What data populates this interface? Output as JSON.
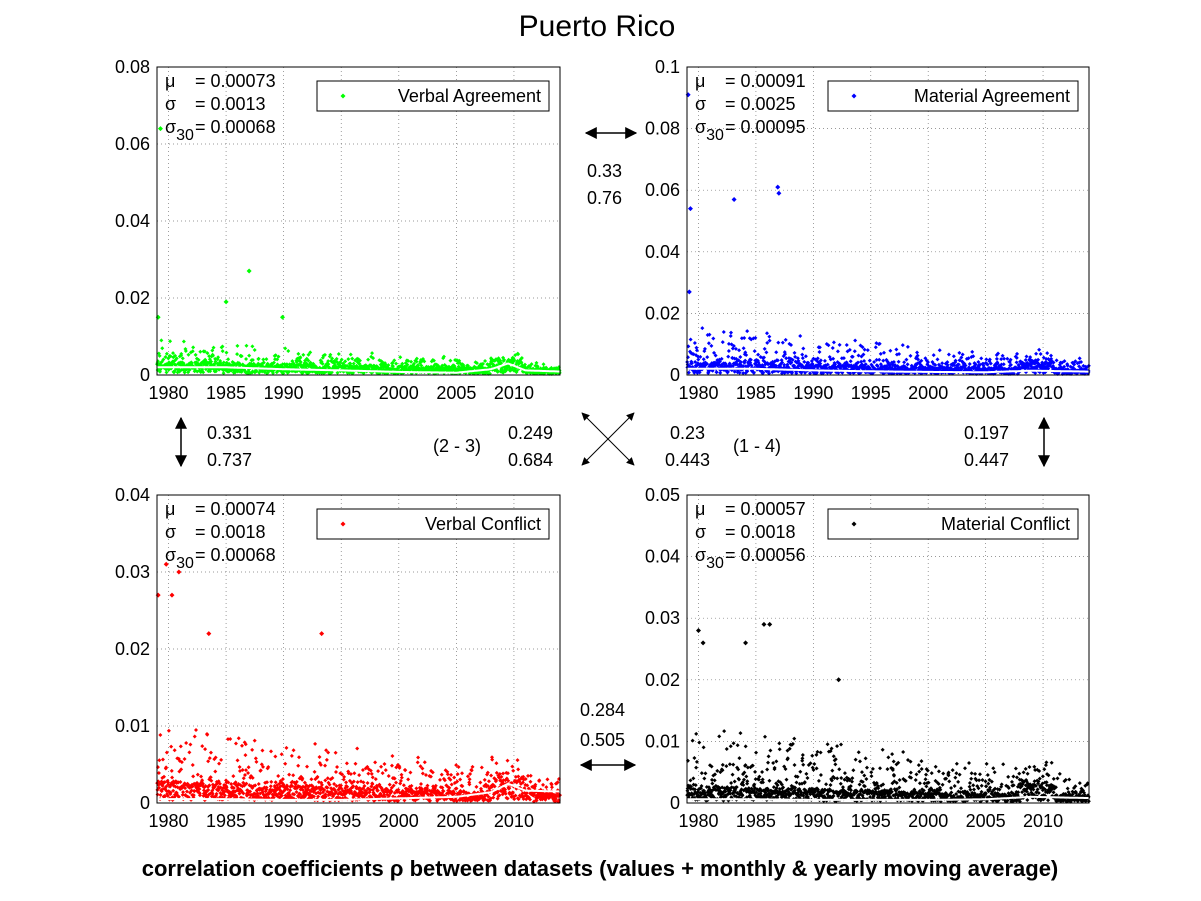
{
  "figure": {
    "title": "Puerto Rico",
    "footer_label": "correlation coefficients ρ between datasets (values + monthly & yearly moving average)"
  },
  "chart_data": [
    {
      "type": "scatter",
      "id": "verbal-agreement",
      "legend": "Verbal Agreement",
      "color": "#00ff00",
      "xlim": [
        1979,
        2014
      ],
      "ylim": [
        0,
        0.08
      ],
      "x_ticks": [
        "1980",
        "1985",
        "1990",
        "1995",
        "2000",
        "2005",
        "2010"
      ],
      "y_ticks": [
        "0",
        "0.02",
        "0.04",
        "0.06",
        "0.08"
      ],
      "stats": {
        "mu": "= 0.00073",
        "sigma": "= 0.0013",
        "sigma30": "= 0.00068"
      },
      "baseline": 0.0025,
      "spread": 0.0045,
      "decay": 0.55,
      "outliers": [
        [
          1979.1,
          0.015
        ],
        [
          1985.0,
          0.019
        ],
        [
          1987.0,
          0.027
        ],
        [
          1989.9,
          0.015
        ],
        [
          1979.3,
          0.064
        ]
      ],
      "moving_avg": [
        [
          1979,
          0.002
        ],
        [
          1985,
          0.002
        ],
        [
          1990,
          0.0015
        ],
        [
          1995,
          0.0012
        ],
        [
          2000,
          0.0008
        ],
        [
          2005,
          0.0006
        ],
        [
          2008,
          0.0015
        ],
        [
          2009.5,
          0.003
        ],
        [
          2011,
          0.0012
        ],
        [
          2014,
          0.0009
        ]
      ]
    },
    {
      "type": "scatter",
      "id": "material-agreement",
      "legend": "Material Agreement",
      "color": "#0000ff",
      "xlim": [
        1979,
        2014
      ],
      "ylim": [
        0,
        0.1
      ],
      "x_ticks": [
        "1980",
        "1985",
        "1990",
        "1995",
        "2000",
        "2005",
        "2010"
      ],
      "y_ticks": [
        "0",
        "0.02",
        "0.04",
        "0.06",
        "0.08",
        "0.1"
      ],
      "stats": {
        "mu": "= 0.00091",
        "sigma": "= 0.0025",
        "sigma30": "= 0.00095"
      },
      "baseline": 0.003,
      "spread": 0.009,
      "decay": 0.6,
      "outliers": [
        [
          1979.1,
          0.091
        ],
        [
          1979.3,
          0.054
        ],
        [
          1983.1,
          0.057
        ],
        [
          1986.9,
          0.061
        ],
        [
          1987.0,
          0.059
        ],
        [
          1979.2,
          0.027
        ]
      ],
      "moving_avg": [
        [
          1979,
          0.002
        ],
        [
          1985,
          0.002
        ],
        [
          1990,
          0.0015
        ],
        [
          1995,
          0.0012
        ],
        [
          2000,
          0.001
        ],
        [
          2005,
          0.0009
        ],
        [
          2009,
          0.0014
        ],
        [
          2014,
          0.0011
        ]
      ]
    },
    {
      "type": "scatter",
      "id": "verbal-conflict",
      "legend": "Verbal Conflict",
      "color": "#ff0000",
      "xlim": [
        1979,
        2014
      ],
      "ylim": [
        0,
        0.04
      ],
      "x_ticks": [
        "1980",
        "1985",
        "1990",
        "1995",
        "2000",
        "2005",
        "2010"
      ],
      "y_ticks": [
        "0",
        "0.01",
        "0.02",
        "0.03",
        "0.04"
      ],
      "stats": {
        "mu": "= 0.00074",
        "sigma": "= 0.0018",
        "sigma30": "= 0.00068"
      },
      "baseline": 0.002,
      "spread": 0.006,
      "decay": 0.6,
      "outliers": [
        [
          1979.1,
          0.027
        ],
        [
          1979.8,
          0.031
        ],
        [
          1980.9,
          0.03
        ],
        [
          1980.3,
          0.027
        ],
        [
          1993.3,
          0.022
        ],
        [
          1983.5,
          0.022
        ]
      ],
      "moving_avg": [
        [
          1979,
          0.0005
        ],
        [
          1985,
          0.0005
        ],
        [
          1990,
          0.0004
        ],
        [
          1995,
          0.0004
        ],
        [
          2000,
          0.0006
        ],
        [
          2005,
          0.0008
        ],
        [
          2008,
          0.0014
        ],
        [
          2009.5,
          0.0025
        ],
        [
          2011,
          0.0016
        ],
        [
          2014,
          0.0015
        ]
      ]
    },
    {
      "type": "scatter",
      "id": "material-conflict",
      "legend": "Material Conflict",
      "color": "#000000",
      "xlim": [
        1979,
        2014
      ],
      "ylim": [
        0,
        0.05
      ],
      "x_ticks": [
        "1980",
        "1985",
        "1990",
        "1995",
        "2000",
        "2005",
        "2010"
      ],
      "y_ticks": [
        "0",
        "0.01",
        "0.02",
        "0.03",
        "0.04",
        "0.05"
      ],
      "stats": {
        "mu": "= 0.00057",
        "sigma": "= 0.0018",
        "sigma30": "= 0.00056"
      },
      "baseline": 0.002,
      "spread": 0.008,
      "decay": 0.6,
      "outliers": [
        [
          1980.0,
          0.028
        ],
        [
          1980.4,
          0.026
        ],
        [
          1985.7,
          0.029
        ],
        [
          1986.2,
          0.029
        ],
        [
          1984.1,
          0.026
        ],
        [
          1992.2,
          0.02
        ]
      ],
      "moving_avg": [
        [
          1979,
          0.0006
        ],
        [
          1985,
          0.0006
        ],
        [
          1990,
          0.0005
        ],
        [
          1995,
          0.0005
        ],
        [
          2000,
          0.0005
        ],
        [
          2005,
          0.0006
        ],
        [
          2009,
          0.001
        ],
        [
          2014,
          0.0008
        ]
      ]
    }
  ],
  "correlations": {
    "va_ma": {
      "values": "0.33",
      "averages": "0.76"
    },
    "va_vc": {
      "values": "0.331",
      "averages": "0.737"
    },
    "diag_23": {
      "label": "(2 - 3)",
      "values": "0.249",
      "averages": "0.684"
    },
    "diag_14": {
      "label": "(1 - 4)",
      "values": "0.23",
      "averages": "0.443"
    },
    "ma_mc": {
      "values": "0.197",
      "averages": "0.447"
    },
    "vc_mc": {
      "values": "0.284",
      "averages": "0.505"
    }
  }
}
